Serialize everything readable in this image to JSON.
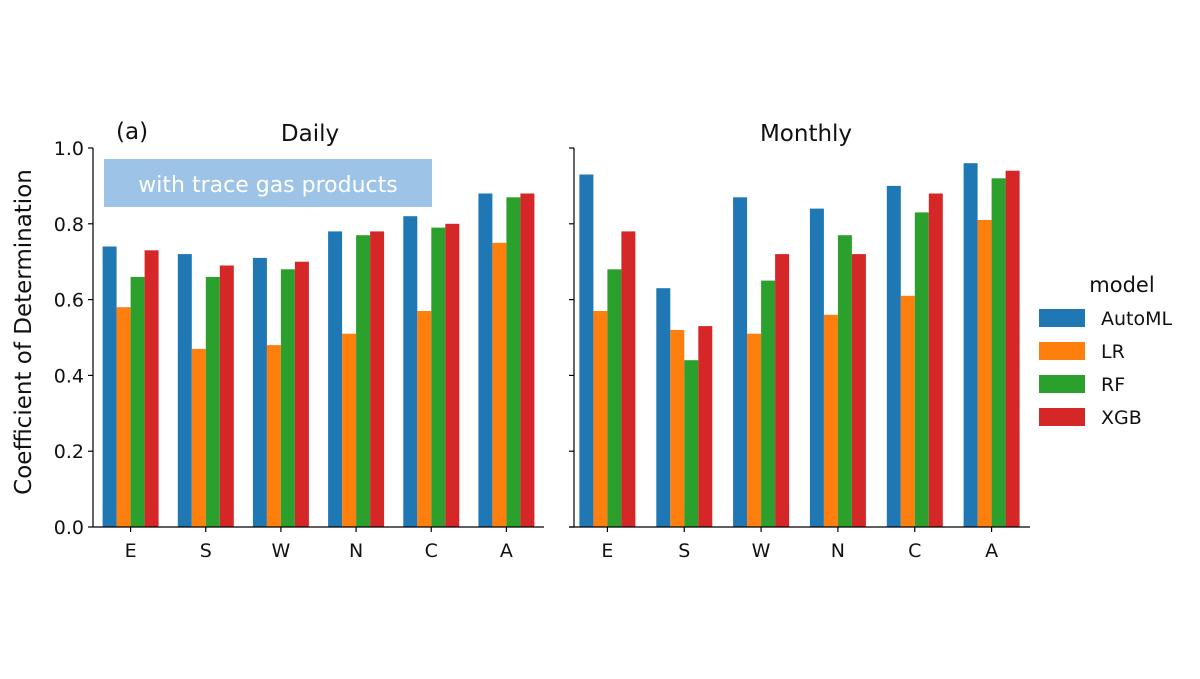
{
  "chart_data": {
    "type": "bar",
    "ylabel": "Coefficient of Determination",
    "ylim": [
      0,
      1.0
    ],
    "yticks": [
      "0.0",
      "0.2",
      "0.4",
      "0.6",
      "0.8",
      "1.0"
    ],
    "categories": [
      "E",
      "S",
      "W",
      "N",
      "C",
      "A"
    ],
    "legend": {
      "title": "model",
      "placement": "right",
      "entries": [
        "AutoML",
        "LR",
        "RF",
        "XGB"
      ]
    },
    "colors": {
      "AutoML": "#1f77b4",
      "LR": "#ff7f0e",
      "RF": "#2ca02c",
      "XGB": "#d62728",
      "annotation_bg": "#9dc3e6"
    },
    "panels": [
      {
        "title": "Daily",
        "label": "(a)",
        "annotation": "with trace gas products",
        "series": [
          {
            "name": "AutoML",
            "values": [
              0.74,
              0.72,
              0.71,
              0.78,
              0.82,
              0.88
            ]
          },
          {
            "name": "LR",
            "values": [
              0.58,
              0.47,
              0.48,
              0.51,
              0.57,
              0.75
            ]
          },
          {
            "name": "RF",
            "values": [
              0.66,
              0.66,
              0.68,
              0.77,
              0.79,
              0.87
            ]
          },
          {
            "name": "XGB",
            "values": [
              0.73,
              0.69,
              0.7,
              0.78,
              0.8,
              0.88
            ]
          }
        ]
      },
      {
        "title": "Monthly",
        "series": [
          {
            "name": "AutoML",
            "values": [
              0.93,
              0.63,
              0.87,
              0.84,
              0.9,
              0.96
            ]
          },
          {
            "name": "LR",
            "values": [
              0.57,
              0.52,
              0.51,
              0.56,
              0.61,
              0.81
            ]
          },
          {
            "name": "RF",
            "values": [
              0.68,
              0.44,
              0.65,
              0.77,
              0.83,
              0.92
            ]
          },
          {
            "name": "XGB",
            "values": [
              0.78,
              0.53,
              0.72,
              0.72,
              0.88,
              0.94
            ]
          }
        ]
      }
    ]
  }
}
